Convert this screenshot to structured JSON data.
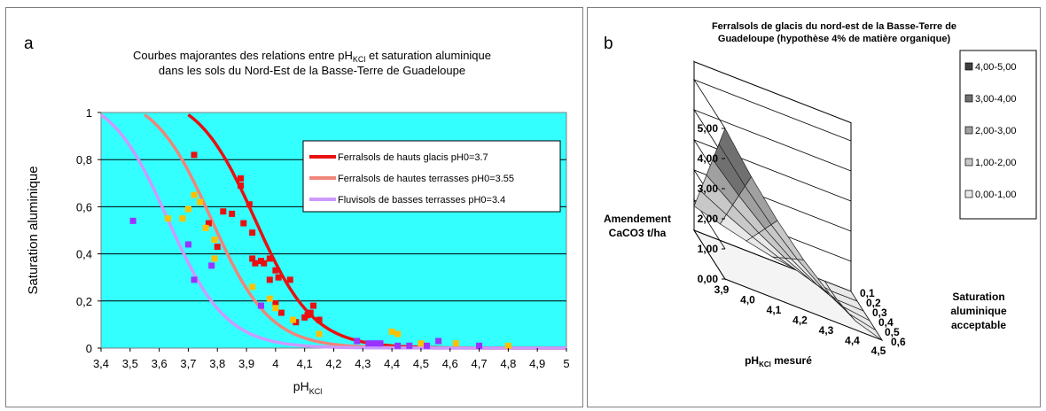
{
  "panel_a": {
    "letter": "a",
    "title_line1_prefix": "Courbes majorantes des relations entre pH",
    "title_line1_sub": "KCl",
    "title_line1_suffix": " et saturation aluminique",
    "title_line2": "dans les sols du Nord-Est de la Basse-Terre de Guadeloupe",
    "ylabel": "Saturation aluminique",
    "xlabel_main": "pH",
    "xlabel_sub": "KCl"
  },
  "panel_b": {
    "letter": "b",
    "title_line1": "Ferralsols de glacis du nord-est de la Basse-Terre de",
    "title_line2": "Guadeloupe (hypothèse 4% de matière organique)",
    "zlabel_line1": "Amendement",
    "zlabel_line2": "CaCO3  t/ha",
    "xlabel_main": "pH",
    "xlabel_sub": "KCl",
    "xlabel_suffix": " mesuré",
    "ylabel_line1": "Saturation",
    "ylabel_line2": "aluminique",
    "ylabel_line3": "acceptable"
  },
  "chart_data": [
    {
      "type": "scatter",
      "title": "Courbes majorantes des relations entre pHKCl et saturation aluminique dans les sols du Nord-Est de la Basse-Terre de Guadeloupe",
      "xlabel": "pHKCl",
      "ylabel": "Saturation aluminique",
      "xlim": [
        3.4,
        5
      ],
      "ylim": [
        0,
        1
      ],
      "x_ticks": [
        "3,4",
        "3,5",
        "3,6",
        "3,7",
        "3,8",
        "3,9",
        "4",
        "4,1",
        "4,2",
        "4,3",
        "4,4",
        "4,5",
        "4,6",
        "4,7",
        "4,8",
        "4,9",
        "5"
      ],
      "y_ticks": [
        "0",
        "0,2",
        "0,4",
        "0,6",
        "0,8",
        "1"
      ],
      "plot_background": "#33ffff",
      "grid": "horizontal",
      "legend_position": "top-right",
      "curves": [
        {
          "name": "Ferralsols de hauts glacis  pH0=3.7",
          "color": "#e81010",
          "pH0": 3.7
        },
        {
          "name": "Ferralsols de hautes terrasses  pH0=3.55",
          "color": "#f0857a",
          "pH0": 3.55
        },
        {
          "name": "Fluvisols de basses terrasses  pH0=3.4",
          "color": "#cc99ff",
          "pH0": 3.4
        }
      ],
      "point_series": [
        {
          "color": "#e81010",
          "points": [
            [
              3.72,
              0.82
            ],
            [
              3.77,
              0.53
            ],
            [
              3.8,
              0.43
            ],
            [
              3.82,
              0.58
            ],
            [
              3.85,
              0.57
            ],
            [
              3.88,
              0.72
            ],
            [
              3.88,
              0.69
            ],
            [
              3.89,
              0.53
            ],
            [
              3.91,
              0.61
            ],
            [
              3.92,
              0.49
            ],
            [
              3.92,
              0.38
            ],
            [
              3.93,
              0.36
            ],
            [
              3.95,
              0.37
            ],
            [
              3.96,
              0.36
            ],
            [
              3.98,
              0.38
            ],
            [
              3.98,
              0.29
            ],
            [
              4.0,
              0.33
            ],
            [
              4.01,
              0.3
            ],
            [
              4.0,
              0.19
            ],
            [
              4.05,
              0.29
            ],
            [
              4.07,
              0.11
            ],
            [
              4.1,
              0.13
            ],
            [
              4.11,
              0.14
            ],
            [
              4.12,
              0.15
            ],
            [
              4.13,
              0.18
            ],
            [
              4.15,
              0.12
            ],
            [
              4.02,
              0.15
            ]
          ]
        },
        {
          "color": "#ffc000",
          "points": [
            [
              3.63,
              0.55
            ],
            [
              3.68,
              0.55
            ],
            [
              3.7,
              0.59
            ],
            [
              3.72,
              0.65
            ],
            [
              3.74,
              0.62
            ],
            [
              3.76,
              0.51
            ],
            [
              3.79,
              0.46
            ],
            [
              3.79,
              0.38
            ],
            [
              3.92,
              0.26
            ],
            [
              3.98,
              0.21
            ],
            [
              4.0,
              0.17
            ],
            [
              4.06,
              0.12
            ],
            [
              4.15,
              0.06
            ],
            [
              4.4,
              0.07
            ],
            [
              4.42,
              0.06
            ],
            [
              4.5,
              0.02
            ],
            [
              4.62,
              0.02
            ],
            [
              4.8,
              0.01
            ]
          ]
        },
        {
          "color": "#9933ff",
          "points": [
            [
              3.51,
              0.54
            ],
            [
              3.7,
              0.44
            ],
            [
              3.72,
              0.29
            ],
            [
              3.78,
              0.35
            ],
            [
              3.95,
              0.18
            ],
            [
              4.28,
              0.03
            ],
            [
              4.32,
              0.02
            ],
            [
              4.34,
              0.02
            ],
            [
              4.36,
              0.02
            ],
            [
              4.42,
              0.01
            ],
            [
              4.46,
              0.01
            ],
            [
              4.52,
              0.01
            ],
            [
              4.56,
              0.03
            ],
            [
              4.7,
              0.01
            ]
          ]
        }
      ]
    },
    {
      "type": "surface3d",
      "title": "Ferralsols de glacis du nord-est de la Basse-Terre de Guadeloupe (hypothèse 4% de matière organique)",
      "zlabel": "Amendement CaCO3  t/ha",
      "xlabel": "pHKCl mesuré",
      "ylabel": "Saturation aluminique acceptable",
      "x_ticks": [
        "3,9",
        "4,0",
        "4,1",
        "4,2",
        "4,3",
        "4,4",
        "4,5"
      ],
      "y_ticks": [
        "0,1",
        "0,2",
        "0,3",
        "0,4",
        "0,5",
        "0,6"
      ],
      "z_ticks": [
        "0,00",
        "1,00",
        "2,00",
        "3,00",
        "4,00",
        "5,00"
      ],
      "zlim": [
        0,
        5
      ],
      "legend_position": "right",
      "legend": [
        {
          "label": "4,00-5,00",
          "color": "#404040"
        },
        {
          "label": "3,00-4,00",
          "color": "#707070"
        },
        {
          "label": "2,00-3,00",
          "color": "#a0a0a0"
        },
        {
          "label": "1,00-2,00",
          "color": "#c8c8c8"
        },
        {
          "label": "0,00-1,00",
          "color": "#e8e8e8"
        }
      ]
    }
  ]
}
